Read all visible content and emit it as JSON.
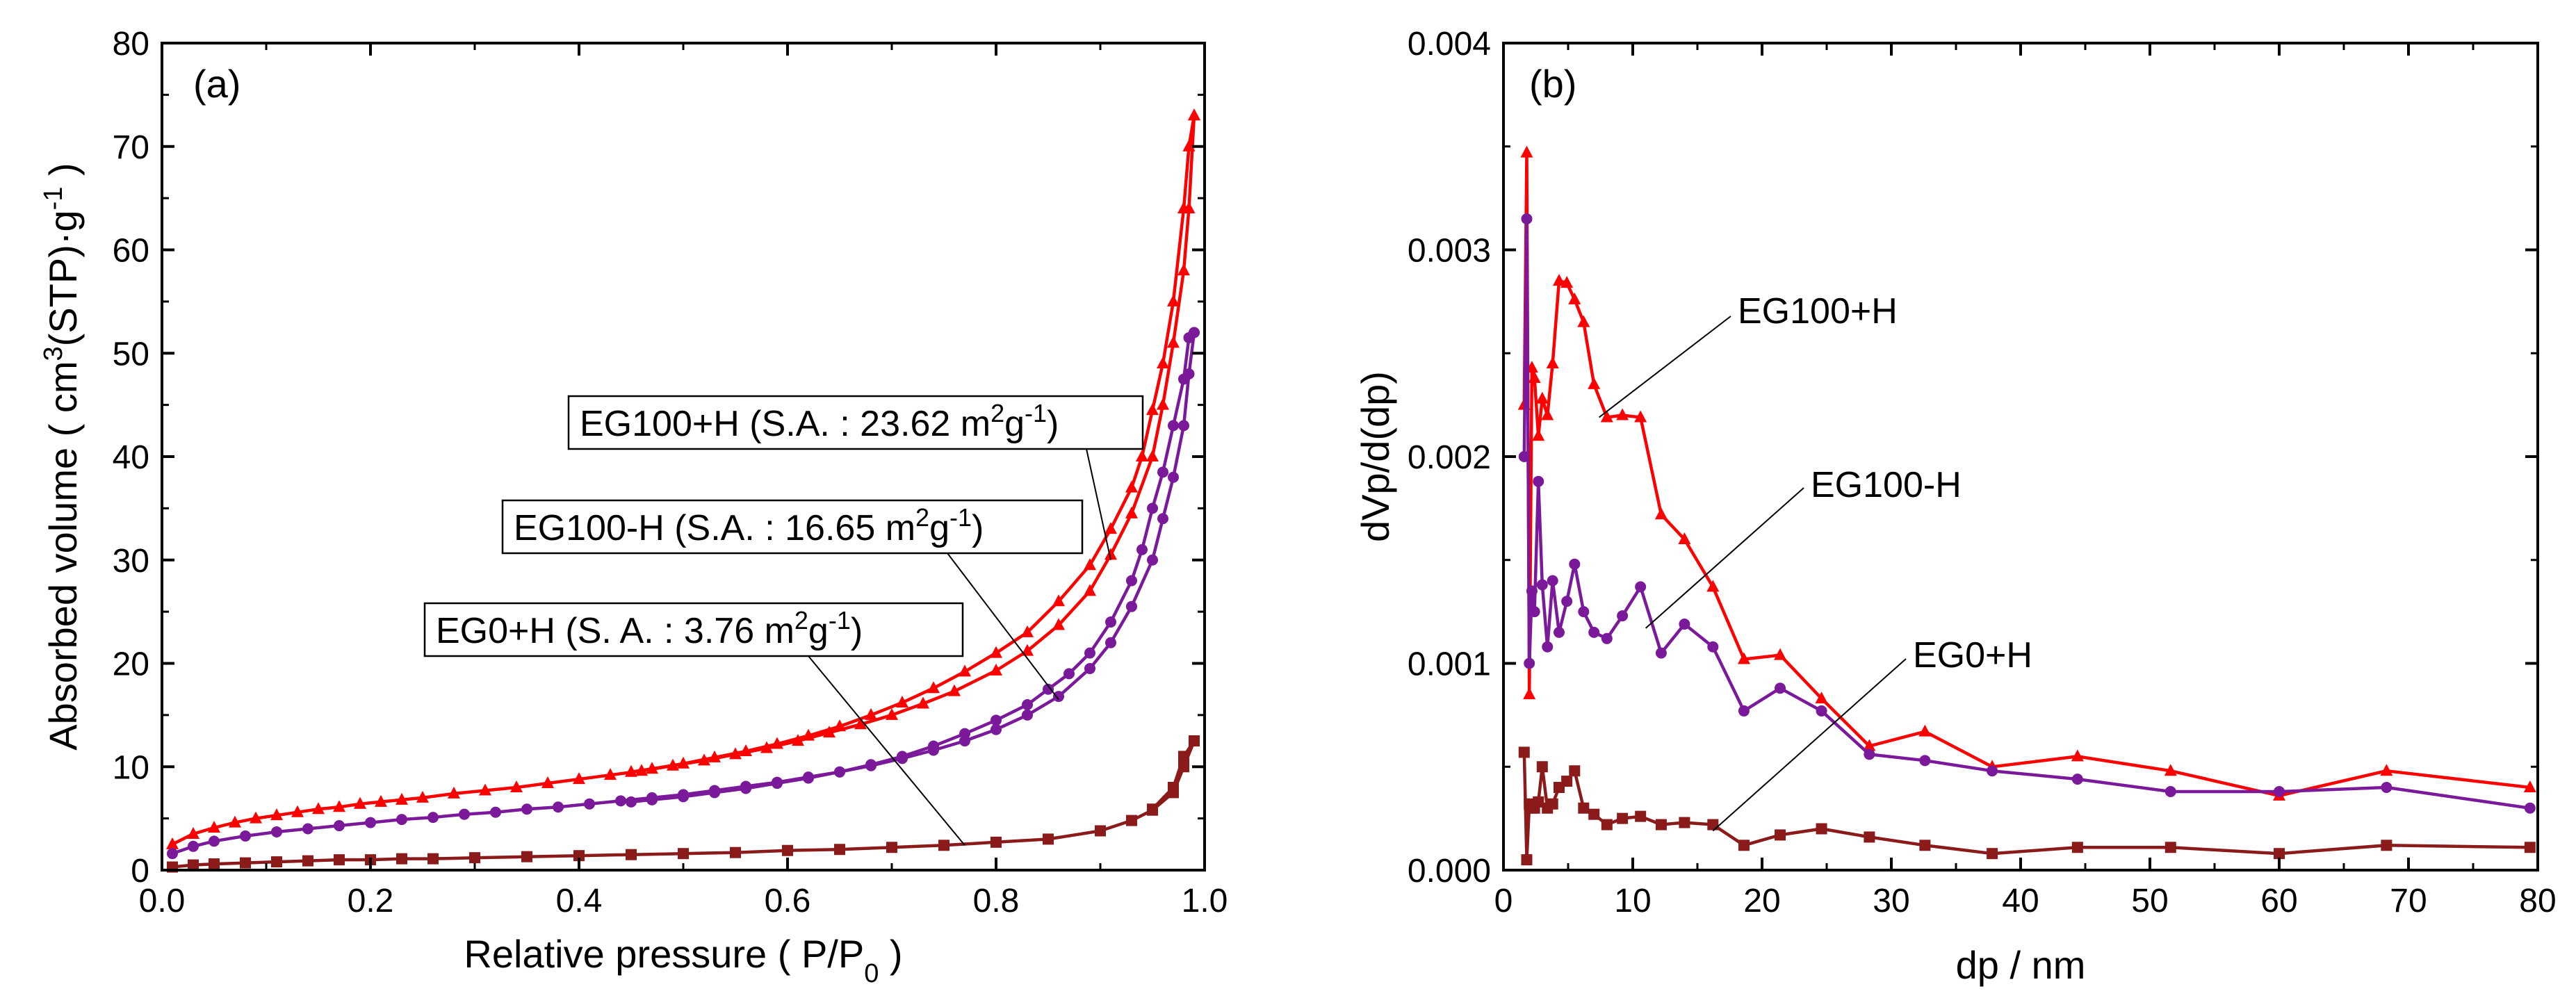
{
  "chart_data": [
    {
      "id": "a",
      "type": "line",
      "panel_label": "(a)",
      "xlabel_main": "Relative pressure ( P/P",
      "xlabel_sub": "0",
      "xlabel_end": " )",
      "ylabel_parts": {
        "a": "Absorbed volume ( cm",
        "sup1": "3",
        "b": "(STP)·g",
        "sup2": "-1",
        "c": " )"
      },
      "xlim": [
        0,
        1
      ],
      "ylim": [
        0,
        80
      ],
      "xticks": [
        0,
        0.2,
        0.4,
        0.6,
        0.8,
        1.0
      ],
      "xtick_labels": [
        "0.0",
        "0.2",
        "0.4",
        "0.6",
        "0.8",
        "1.0"
      ],
      "yticks": [
        0,
        10,
        20,
        30,
        40,
        50,
        60,
        70,
        80
      ],
      "ytick_labels": [
        "0",
        "10",
        "20",
        "30",
        "40",
        "50",
        "60",
        "70",
        "80"
      ],
      "series": [
        {
          "name": "EG100+H",
          "color": "#ff0000",
          "marker": "triangle",
          "adsorption": {
            "x": [
              0.01,
              0.03,
              0.05,
              0.07,
              0.09,
              0.11,
              0.13,
              0.15,
              0.17,
              0.19,
              0.21,
              0.23,
              0.25,
              0.28,
              0.31,
              0.34,
              0.37,
              0.4,
              0.43,
              0.46,
              0.49,
              0.52,
              0.55,
              0.58,
              0.61,
              0.64,
              0.67,
              0.7,
              0.73,
              0.76,
              0.8,
              0.83,
              0.86,
              0.89,
              0.91,
              0.93,
              0.95,
              0.96,
              0.97,
              0.98,
              0.985,
              0.99
            ],
            "y": [
              2.5,
              3.5,
              4.1,
              4.6,
              5.0,
              5.3,
              5.6,
              5.9,
              6.1,
              6.4,
              6.6,
              6.8,
              7.0,
              7.4,
              7.7,
              8.0,
              8.4,
              8.8,
              9.2,
              9.6,
              10.1,
              10.6,
              11.2,
              11.8,
              12.5,
              13.3,
              14.1,
              15.0,
              16.1,
              17.3,
              19.3,
              21.2,
              23.7,
              27.0,
              30.5,
              34.5,
              40.0,
              45.0,
              51.0,
              58.0,
              64.0,
              73.0
            ]
          },
          "desorption": {
            "x": [
              0.99,
              0.985,
              0.98,
              0.97,
              0.96,
              0.95,
              0.94,
              0.93,
              0.91,
              0.89,
              0.86,
              0.83,
              0.8,
              0.77,
              0.74,
              0.71,
              0.68,
              0.65,
              0.62,
              0.59,
              0.56,
              0.53,
              0.5,
              0.47,
              0.45
            ],
            "y": [
              73.0,
              70.0,
              64.0,
              55.0,
              49.0,
              44.5,
              40.0,
              37.0,
              33.0,
              29.5,
              26.0,
              23.0,
              21.0,
              19.2,
              17.6,
              16.2,
              15.0,
              13.9,
              13.0,
              12.2,
              11.5,
              10.9,
              10.3,
              9.8,
              9.5
            ]
          }
        },
        {
          "name": "EG100-H",
          "color": "#7a1a9a",
          "marker": "circle",
          "adsorption": {
            "x": [
              0.01,
              0.03,
              0.05,
              0.08,
              0.11,
              0.14,
              0.17,
              0.2,
              0.23,
              0.26,
              0.29,
              0.32,
              0.35,
              0.38,
              0.41,
              0.44,
              0.47,
              0.5,
              0.53,
              0.56,
              0.59,
              0.62,
              0.65,
              0.68,
              0.71,
              0.74,
              0.77,
              0.8,
              0.83,
              0.86,
              0.89,
              0.91,
              0.93,
              0.95,
              0.96,
              0.97,
              0.98,
              0.985,
              0.99
            ],
            "y": [
              1.6,
              2.3,
              2.8,
              3.3,
              3.7,
              4.0,
              4.3,
              4.6,
              4.9,
              5.1,
              5.4,
              5.6,
              5.9,
              6.1,
              6.4,
              6.7,
              7.0,
              7.3,
              7.7,
              8.1,
              8.5,
              9.0,
              9.5,
              10.1,
              10.8,
              11.6,
              12.5,
              13.6,
              15.0,
              16.8,
              19.5,
              22.0,
              25.5,
              30.0,
              34.0,
              38.0,
              43.0,
              48.0,
              52.0
            ]
          },
          "desorption": {
            "x": [
              0.99,
              0.985,
              0.98,
              0.97,
              0.96,
              0.95,
              0.94,
              0.93,
              0.91,
              0.89,
              0.87,
              0.85,
              0.83,
              0.8,
              0.77,
              0.74,
              0.71,
              0.68,
              0.65,
              0.62,
              0.59,
              0.56,
              0.53,
              0.5,
              0.47,
              0.45
            ],
            "y": [
              52.0,
              51.5,
              47.5,
              43.0,
              38.5,
              35.0,
              31.0,
              28.0,
              24.0,
              21.0,
              19.0,
              17.5,
              16.0,
              14.5,
              13.2,
              12.0,
              11.0,
              10.2,
              9.5,
              8.9,
              8.4,
              7.9,
              7.5,
              7.1,
              6.8,
              6.6
            ]
          }
        },
        {
          "name": "EG0+H",
          "color": "#8b1a1a",
          "marker": "square",
          "adsorption": {
            "x": [
              0.01,
              0.03,
              0.05,
              0.08,
              0.11,
              0.14,
              0.17,
              0.2,
              0.23,
              0.26,
              0.3,
              0.35,
              0.4,
              0.45,
              0.5,
              0.55,
              0.6,
              0.65,
              0.7,
              0.75,
              0.8,
              0.85,
              0.9,
              0.93,
              0.95,
              0.97,
              0.98,
              0.99
            ],
            "y": [
              0.3,
              0.5,
              0.6,
              0.7,
              0.8,
              0.9,
              1.0,
              1.0,
              1.1,
              1.1,
              1.2,
              1.3,
              1.4,
              1.5,
              1.6,
              1.7,
              1.9,
              2.0,
              2.2,
              2.4,
              2.7,
              3.0,
              3.8,
              4.8,
              5.8,
              7.5,
              10.0,
              12.5
            ]
          },
          "desorption": {
            "x": [
              0.99,
              0.98,
              0.97,
              0.95
            ],
            "y": [
              12.5,
              11.0,
              8.0,
              5.9
            ]
          }
        }
      ],
      "annotations": [
        {
          "series": "EG100+H",
          "main": "EG100+H (S.A. : 23.62 m",
          "sup": "2",
          "mid": "g",
          "sup2": "-1",
          "end": ")"
        },
        {
          "series": "EG100-H",
          "main": "EG100-H (S.A. : 16.65 m",
          "sup": "2",
          "mid": "g",
          "sup2": "-1",
          "end": ")"
        },
        {
          "series": "EG0+H",
          "main": "EG0+H (S. A. : 3.76 m",
          "sup": "2",
          "mid": "g",
          "sup2": "-1",
          "end": ")"
        }
      ]
    },
    {
      "id": "b",
      "type": "line",
      "panel_label": "(b)",
      "xlabel": "dp / nm",
      "ylabel": "dVp/d(dp)",
      "xlim": [
        0,
        80
      ],
      "ylim": [
        0,
        0.004
      ],
      "xticks": [
        0,
        10,
        20,
        30,
        40,
        50,
        60,
        70,
        80
      ],
      "xtick_labels": [
        "0",
        "10",
        "20",
        "30",
        "40",
        "50",
        "60",
        "70",
        "80"
      ],
      "yticks": [
        0,
        0.001,
        0.002,
        0.003,
        0.004
      ],
      "ytick_labels": [
        "0.000",
        "0.001",
        "0.002",
        "0.003",
        "0.004"
      ],
      "series": [
        {
          "name": "EG100+H",
          "color": "#ff0000",
          "marker": "triangle",
          "x": [
            1.6,
            1.8,
            2.0,
            2.2,
            2.4,
            2.7,
            3.0,
            3.4,
            3.8,
            4.3,
            4.9,
            5.5,
            6.2,
            7.0,
            8.0,
            9.2,
            10.6,
            12.2,
            14.0,
            16.2,
            18.6,
            21.4,
            24.6,
            28.3,
            32.6,
            37.8,
            44.4,
            51.6,
            60.0,
            68.3,
            79.4
          ],
          "y": [
            0.00225,
            0.00347,
            0.00085,
            0.00243,
            0.00238,
            0.0021,
            0.00228,
            0.0022,
            0.00245,
            0.00285,
            0.00284,
            0.00276,
            0.00265,
            0.00235,
            0.00219,
            0.0022,
            0.00219,
            0.00172,
            0.0016,
            0.00137,
            0.00102,
            0.00104,
            0.00083,
            0.0006,
            0.00067,
            0.0005,
            0.00055,
            0.00048,
            0.00036,
            0.00048,
            0.0004
          ]
        },
        {
          "name": "EG100-H",
          "color": "#7a1a9a",
          "marker": "circle",
          "x": [
            1.6,
            1.8,
            2.0,
            2.2,
            2.4,
            2.7,
            3.0,
            3.4,
            3.8,
            4.3,
            4.9,
            5.5,
            6.2,
            7.0,
            8.0,
            9.2,
            10.6,
            12.2,
            14.0,
            16.2,
            18.6,
            21.4,
            24.6,
            28.3,
            32.6,
            37.8,
            44.4,
            51.6,
            60.0,
            68.3,
            79.4
          ],
          "y": [
            0.002,
            0.00315,
            0.001,
            0.00135,
            0.00125,
            0.00188,
            0.00138,
            0.00108,
            0.0014,
            0.00115,
            0.0013,
            0.00148,
            0.00125,
            0.00115,
            0.00112,
            0.00123,
            0.00137,
            0.00105,
            0.00119,
            0.00108,
            0.00077,
            0.00088,
            0.00077,
            0.00056,
            0.00053,
            0.00048,
            0.00044,
            0.00038,
            0.00038,
            0.0004,
            0.0003
          ]
        },
        {
          "name": "EG0+H",
          "color": "#8b1a1a",
          "marker": "square",
          "x": [
            1.6,
            1.8,
            2.0,
            2.2,
            2.4,
            2.7,
            3.0,
            3.4,
            3.8,
            4.3,
            4.9,
            5.5,
            6.2,
            7.0,
            8.0,
            9.2,
            10.6,
            12.2,
            14.0,
            16.2,
            18.6,
            21.4,
            24.6,
            28.3,
            32.6,
            37.8,
            44.4,
            51.6,
            60.0,
            68.3,
            79.4
          ],
          "y": [
            0.00057,
            5e-05,
            0.00032,
            0.0003,
            0.0003,
            0.00033,
            0.0005,
            0.0003,
            0.00032,
            0.0004,
            0.00043,
            0.00048,
            0.0003,
            0.00027,
            0.00022,
            0.00025,
            0.00026,
            0.00022,
            0.00023,
            0.00022,
            0.00012,
            0.00017,
            0.0002,
            0.00016,
            0.00012,
            8e-05,
            0.00011,
            0.00011,
            8e-05,
            0.00012,
            0.00011
          ]
        }
      ],
      "annotations": [
        {
          "series": "EG100+H",
          "text": "EG100+H"
        },
        {
          "series": "EG100-H",
          "text": "EG100-H"
        },
        {
          "series": "EG0+H",
          "text": "EG0+H"
        }
      ]
    }
  ]
}
